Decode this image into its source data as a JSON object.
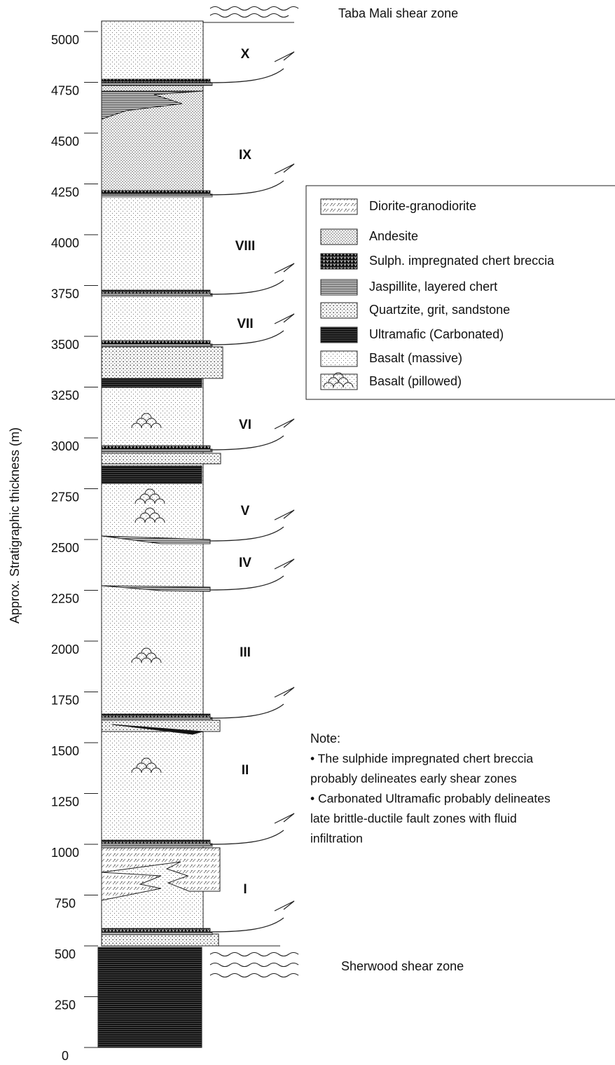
{
  "axis": {
    "label": "Approx. Stratigraphic thickness (m)",
    "ticks": [
      0,
      250,
      500,
      750,
      1000,
      1250,
      1500,
      1750,
      2000,
      2250,
      2500,
      2750,
      3000,
      3250,
      3500,
      3750,
      4000,
      4250,
      4500,
      4750,
      5000
    ]
  },
  "units": [
    "X",
    "IX",
    "VIII",
    "VII",
    "VI",
    "V",
    "IV",
    "III",
    "II",
    "I"
  ],
  "shear_zones": {
    "top": "Taba Mali shear zone",
    "bottom": "Sherwood shear zone"
  },
  "legend": [
    "Diorite-granodiorite",
    "Andesite",
    "Sulph. impregnated chert breccia",
    "Jaspillite, layered chert",
    "Quartzite, grit, sandstone",
    "Ultramafic (Carbonated)",
    "Basalt (massive)",
    "Basalt (pillowed)"
  ],
  "note": {
    "title": "Note:",
    "lines": [
      "• The sulphide impregnated chert breccia",
      "probably delineates early shear zones",
      "• Carbonated Ultramafic probably delineates",
      "late brittle-ductile fault zones with fluid",
      "infiltration"
    ]
  }
}
